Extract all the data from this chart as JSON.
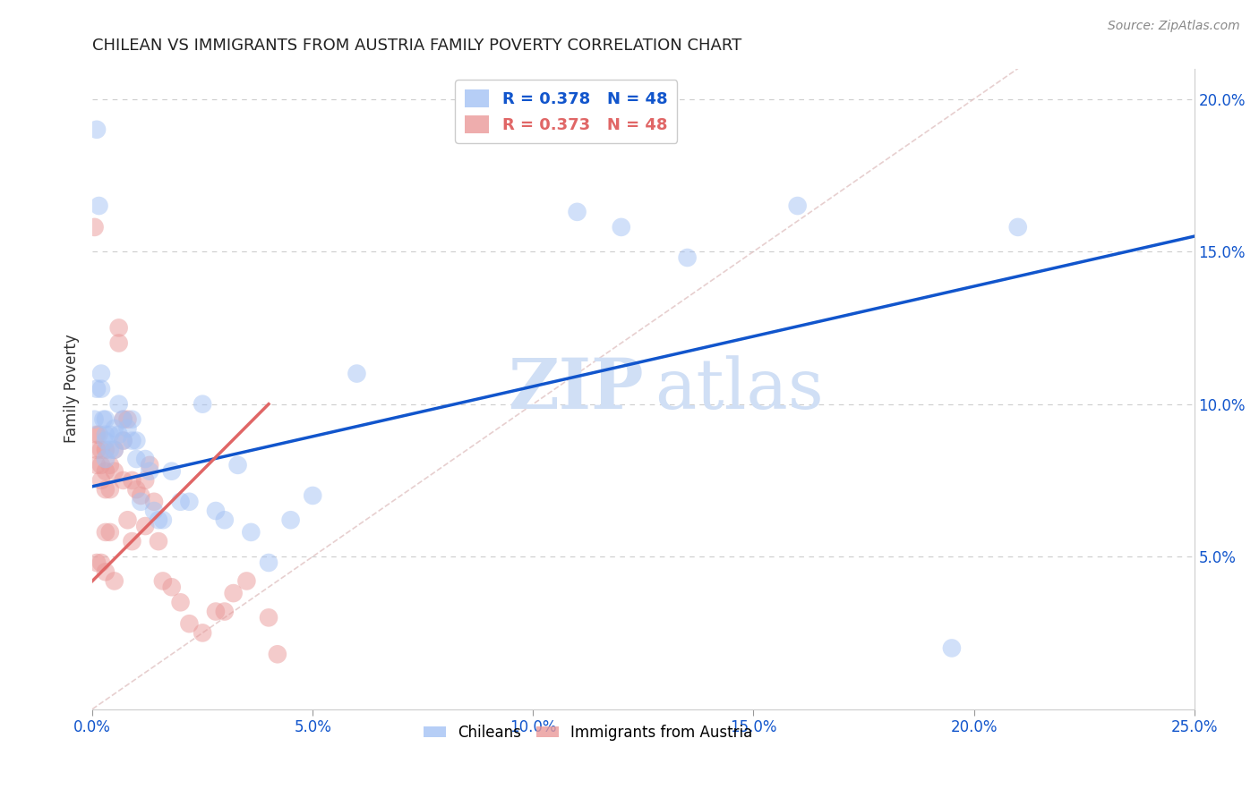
{
  "title": "CHILEAN VS IMMIGRANTS FROM AUSTRIA FAMILY POVERTY CORRELATION CHART",
  "source": "Source: ZipAtlas.com",
  "ylabel": "Family Poverty",
  "xlim": [
    0,
    0.25
  ],
  "ylim": [
    0,
    0.21
  ],
  "xticks": [
    0.0,
    0.05,
    0.1,
    0.15,
    0.2,
    0.25
  ],
  "xtick_labels": [
    "0.0%",
    "5.0%",
    "10.0%",
    "15.0%",
    "20.0%",
    "25.0%"
  ],
  "yticks": [
    0.05,
    0.1,
    0.15,
    0.2
  ],
  "ytick_labels": [
    "5.0%",
    "10.0%",
    "15.0%",
    "20.0%"
  ],
  "legend_blue_r": "R = 0.378",
  "legend_blue_n": "N = 48",
  "legend_pink_r": "R = 0.373",
  "legend_pink_n": "N = 48",
  "legend_label_blue": "Chileans",
  "legend_label_pink": "Immigrants from Austria",
  "blue_color": "#a4c2f4",
  "pink_color": "#ea9999",
  "blue_line_color": "#1155cc",
  "pink_line_color": "#e06666",
  "blue_scatter_x": [
    0.0005,
    0.001,
    0.001,
    0.0015,
    0.002,
    0.002,
    0.0025,
    0.003,
    0.003,
    0.003,
    0.003,
    0.004,
    0.004,
    0.005,
    0.005,
    0.006,
    0.006,
    0.007,
    0.007,
    0.008,
    0.009,
    0.009,
    0.01,
    0.01,
    0.011,
    0.012,
    0.013,
    0.014,
    0.015,
    0.016,
    0.018,
    0.02,
    0.022,
    0.025,
    0.028,
    0.03,
    0.033,
    0.036,
    0.04,
    0.045,
    0.05,
    0.06,
    0.11,
    0.12,
    0.135,
    0.16,
    0.195,
    0.21
  ],
  "blue_scatter_y": [
    0.095,
    0.19,
    0.105,
    0.165,
    0.11,
    0.105,
    0.095,
    0.095,
    0.09,
    0.088,
    0.082,
    0.09,
    0.085,
    0.092,
    0.085,
    0.1,
    0.09,
    0.095,
    0.088,
    0.092,
    0.095,
    0.088,
    0.088,
    0.082,
    0.068,
    0.082,
    0.078,
    0.065,
    0.062,
    0.062,
    0.078,
    0.068,
    0.068,
    0.1,
    0.065,
    0.062,
    0.08,
    0.058,
    0.048,
    0.062,
    0.07,
    0.11,
    0.163,
    0.158,
    0.148,
    0.165,
    0.02,
    0.158
  ],
  "pink_scatter_x": [
    0.0005,
    0.001,
    0.001,
    0.001,
    0.001,
    0.0015,
    0.002,
    0.002,
    0.002,
    0.002,
    0.003,
    0.003,
    0.003,
    0.003,
    0.003,
    0.004,
    0.004,
    0.004,
    0.005,
    0.005,
    0.005,
    0.006,
    0.006,
    0.007,
    0.007,
    0.007,
    0.008,
    0.008,
    0.009,
    0.009,
    0.01,
    0.011,
    0.012,
    0.012,
    0.013,
    0.014,
    0.015,
    0.016,
    0.018,
    0.02,
    0.022,
    0.025,
    0.028,
    0.03,
    0.032,
    0.035,
    0.04,
    0.042
  ],
  "pink_scatter_y": [
    0.158,
    0.09,
    0.085,
    0.08,
    0.048,
    0.09,
    0.085,
    0.08,
    0.075,
    0.048,
    0.085,
    0.078,
    0.072,
    0.058,
    0.045,
    0.08,
    0.072,
    0.058,
    0.085,
    0.078,
    0.042,
    0.125,
    0.12,
    0.095,
    0.088,
    0.075,
    0.095,
    0.062,
    0.075,
    0.055,
    0.072,
    0.07,
    0.075,
    0.06,
    0.08,
    0.068,
    0.055,
    0.042,
    0.04,
    0.035,
    0.028,
    0.025,
    0.032,
    0.032,
    0.038,
    0.042,
    0.03,
    0.018
  ],
  "blue_line_x": [
    0.0,
    0.25
  ],
  "blue_line_y": [
    0.073,
    0.155
  ],
  "pink_line_x": [
    0.0,
    0.04
  ],
  "pink_line_y": [
    0.042,
    0.1
  ],
  "diag_line_x": [
    0.0,
    0.21
  ],
  "diag_line_y": [
    0.0,
    0.21
  ],
  "background_color": "#ffffff",
  "grid_color": "#cccccc"
}
